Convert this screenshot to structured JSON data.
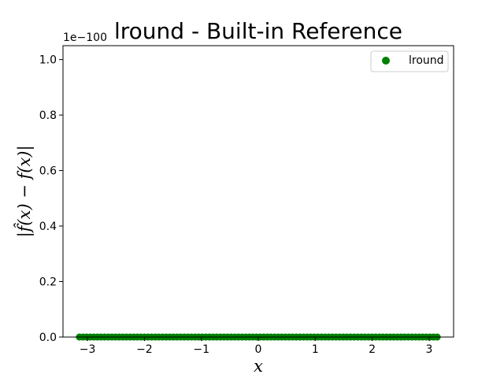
{
  "chart_data": {
    "type": "scatter",
    "title": "lround - Built-in Reference",
    "xlabel": "x",
    "ylabel": "|f̂(x) − f(x)|",
    "y_offset_label": "1e−100",
    "xlim": [
      -3.43,
      3.43
    ],
    "ylim": [
      0,
      1.05
    ],
    "xticks": [
      -3,
      -2,
      -1,
      0,
      1,
      2,
      3
    ],
    "xtick_labels": [
      "−3",
      "−2",
      "−1",
      "0",
      "1",
      "2",
      "3"
    ],
    "yticks": [
      0.0,
      0.2,
      0.4,
      0.6,
      0.8,
      1.0
    ],
    "ytick_labels": [
      "0.0",
      "0.2",
      "0.4",
      "0.6",
      "0.8",
      "1.0"
    ],
    "grid": false,
    "legend_position": "top-right",
    "series": [
      {
        "name": "lround",
        "color": "#008000",
        "marker": "circle",
        "x_range": [
          -3.14159,
          3.14159
        ],
        "n_points": 100,
        "y_value": 0
      }
    ]
  }
}
